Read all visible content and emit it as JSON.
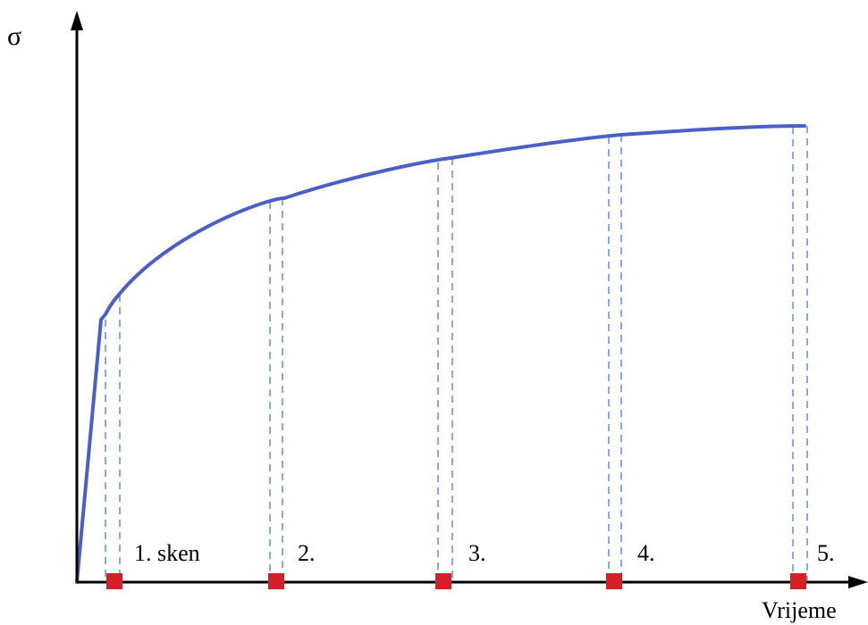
{
  "y_axis_label": "σ",
  "x_axis_label": "Vrijeme",
  "scans": [
    {
      "label": "1. sken"
    },
    {
      "label": "2."
    },
    {
      "label": "3."
    },
    {
      "label": "4."
    },
    {
      "label": "5."
    }
  ],
  "colors": {
    "curve": "#4a5fc8",
    "guides": "#8aa8e6",
    "markers": "#d42027",
    "axes": "#000000"
  }
}
